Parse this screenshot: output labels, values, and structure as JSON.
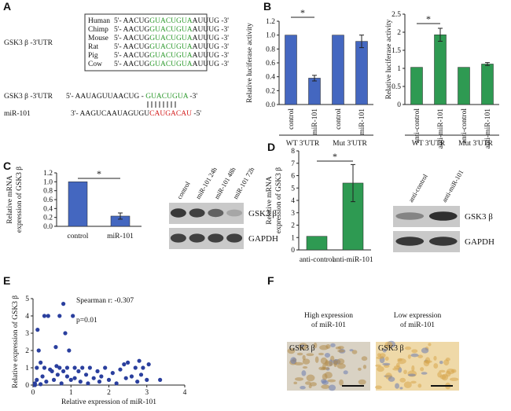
{
  "panel_labels": [
    "A",
    "B",
    "C",
    "D",
    "E",
    "F"
  ],
  "sequence_panel": {
    "conservation_label": "GSK3 β -3'UTR",
    "species": [
      {
        "name": "Human",
        "left": "5'- AACUG",
        "seed": "GUACUGUA",
        "right": "AUUUG -3'"
      },
      {
        "name": "Chimp",
        "left": "5'- AACUG",
        "seed": "GUACUGUA",
        "right": "AUUUG -3'"
      },
      {
        "name": "Mouse",
        "left": "5'- AACUG",
        "seed": "GUACUGUA",
        "right": "AUUUG -3'"
      },
      {
        "name": "Rat",
        "left": "5'- AACUG",
        "seed": "GUACUGUA",
        "right": "AUUUG -3'"
      },
      {
        "name": "Pig",
        "left": "5'- AACUG",
        "seed": "GUACUGUA",
        "right": "AUUUG -3'"
      },
      {
        "name": "Cow",
        "left": "5'- AACUG",
        "seed": "GUACUGUA",
        "right": "AUUUG -3'"
      }
    ],
    "alignment": {
      "utr_label": "GSK3 β -3'UTR",
      "utr_left": "5'- AAUAGUUAACUG - ",
      "utr_site": "GUACUGUA",
      "utr_right": " -3'",
      "mirna_label": "miR-101",
      "mirna_left": "3'- AAGUCAAUAGUGU",
      "mirna_seed": "CAUGACAU",
      "mirna_right": " -5'"
    }
  },
  "chart_data": [
    {
      "type": "bar",
      "y_label": "Relative luciferase activity",
      "categories": [
        "control",
        "miR-101",
        "control",
        "miR-101"
      ],
      "group_labels": [
        "WT 3'UTR",
        "Mut 3'UTR"
      ],
      "values": [
        1.0,
        0.38,
        1.0,
        0.91
      ],
      "errors": [
        null,
        0.04,
        null,
        0.09
      ],
      "color": "#4467c0",
      "ylim": [
        0,
        1.2
      ],
      "yticks": [
        {
          "value": 0,
          "label": "0.0"
        },
        {
          "value": 0.2,
          "label": "0.2"
        },
        {
          "value": 0.4,
          "label": "0.4"
        },
        {
          "value": 0.6,
          "label": "0.6"
        },
        {
          "value": 0.8,
          "label": "0.8"
        },
        {
          "value": 1.0,
          "label": "1.0"
        },
        {
          "value": 1.2,
          "label": "1.2"
        }
      ],
      "annotation": "*"
    },
    {
      "type": "bar",
      "y_label": "Relative luciferase activity",
      "categories": [
        "anti-control",
        "anti-miR-101",
        "anti-control",
        "anti-miR-101"
      ],
      "group_labels": [
        "WT 3'UTR",
        "Mut 3'UTR"
      ],
      "values": [
        1.03,
        1.93,
        1.03,
        1.12
      ],
      "errors": [
        null,
        0.18,
        null,
        0.04
      ],
      "color": "#2e9a52",
      "ylim": [
        0,
        2.5
      ],
      "yticks": [
        0,
        0.5,
        1,
        1.5,
        2,
        2.5
      ],
      "annotation": "*"
    },
    {
      "type": "bar",
      "y_label": [
        "Relative mRNA",
        "expression of GSK3 β"
      ],
      "categories": [
        "control",
        "miR-101"
      ],
      "values": [
        1.0,
        0.23
      ],
      "errors": [
        null,
        0.07
      ],
      "color": "#4467c0",
      "ylim": [
        0,
        1.2
      ],
      "yticks": [
        {
          "value": 0,
          "label": "0.0"
        },
        {
          "value": 0.2,
          "label": "0.2"
        },
        {
          "value": 0.4,
          "label": "0.4"
        },
        {
          "value": 0.6,
          "label": "0.6"
        },
        {
          "value": 0.8,
          "label": "0.8"
        },
        {
          "value": 1.0,
          "label": "1.0"
        },
        {
          "value": 1.2,
          "label": "1.2"
        }
      ],
      "annotation": "*"
    },
    {
      "type": "bar",
      "y_label": [
        "Relative mRNA",
        "expression of GSK3 β"
      ],
      "categories": [
        "anti-control",
        "anti-miR-101"
      ],
      "values": [
        1.1,
        5.4
      ],
      "errors": [
        null,
        1.5
      ],
      "color": "#2e9a52",
      "ylim": [
        0,
        8
      ],
      "yticks": [
        0,
        1,
        2,
        3,
        4,
        5,
        6,
        7,
        8
      ],
      "annotation": "*"
    },
    {
      "type": "scatter",
      "x_label": "Relative expression of miR-101",
      "y_label": "Relative expression of GSK3 β",
      "annotations": [
        "Spearman r: -0.307",
        "p=0.01"
      ],
      "color": "#2a3f9e",
      "xlim": [
        0,
        4
      ],
      "xticks": [
        0,
        1,
        2,
        3,
        4
      ],
      "ylim": [
        0,
        5
      ],
      "yticks": [
        0,
        1,
        2,
        3,
        4,
        5
      ],
      "x": [
        0.05,
        0.1,
        0.1,
        0.12,
        0.15,
        0.2,
        0.25,
        0.3,
        0.3,
        0.35,
        0.4,
        0.45,
        0.5,
        0.55,
        0.6,
        0.62,
        0.65,
        0.7,
        0.7,
        0.75,
        0.8,
        0.8,
        0.85,
        0.9,
        0.9,
        0.95,
        1.0,
        1.05,
        1.1,
        1.1,
        1.2,
        1.25,
        1.3,
        1.4,
        1.45,
        1.5,
        1.6,
        1.7,
        1.75,
        1.8,
        1.9,
        2.0,
        2.1,
        2.2,
        2.3,
        2.4,
        2.45,
        2.5,
        2.6,
        2.7,
        2.75,
        2.8,
        2.85,
        2.9,
        3.0,
        3.05,
        3.35,
        0.05,
        0.2
      ],
      "values": [
        0.1,
        0.3,
        1.0,
        3.2,
        2.0,
        1.3,
        0.5,
        4.0,
        1.0,
        0.2,
        4.0,
        0.9,
        0.8,
        0.3,
        2.2,
        1.1,
        0.6,
        4.0,
        1.0,
        0.1,
        4.7,
        0.8,
        3.0,
        0.5,
        1.0,
        2.0,
        0.3,
        4.0,
        1.0,
        0.4,
        0.8,
        0.2,
        1.0,
        0.6,
        0.1,
        1.0,
        0.4,
        0.8,
        0.2,
        0.5,
        1.0,
        0.3,
        0.7,
        0.1,
        0.9,
        1.2,
        0.4,
        1.3,
        0.5,
        1.0,
        0.2,
        1.4,
        0.6,
        1.0,
        0.3,
        1.2,
        0.3,
        0.0,
        0.05
      ]
    }
  ],
  "blots": [
    {
      "lanes": [
        "control",
        "miR-101 24h",
        "miR-101 48h",
        "miR-101 72h"
      ],
      "bands": [
        "GSK3 β",
        "GAPDH"
      ]
    },
    {
      "lanes": [
        "anti-control",
        "anti-miR-101"
      ],
      "bands": [
        "GSK3 β",
        "GAPDH"
      ]
    }
  ],
  "micrographs": [
    {
      "title": [
        "High expression",
        "of miR-101"
      ],
      "stain": "GSK3 β"
    },
    {
      "title": [
        "Low expression",
        "of miR-101"
      ],
      "stain": "GSK3 β"
    }
  ]
}
